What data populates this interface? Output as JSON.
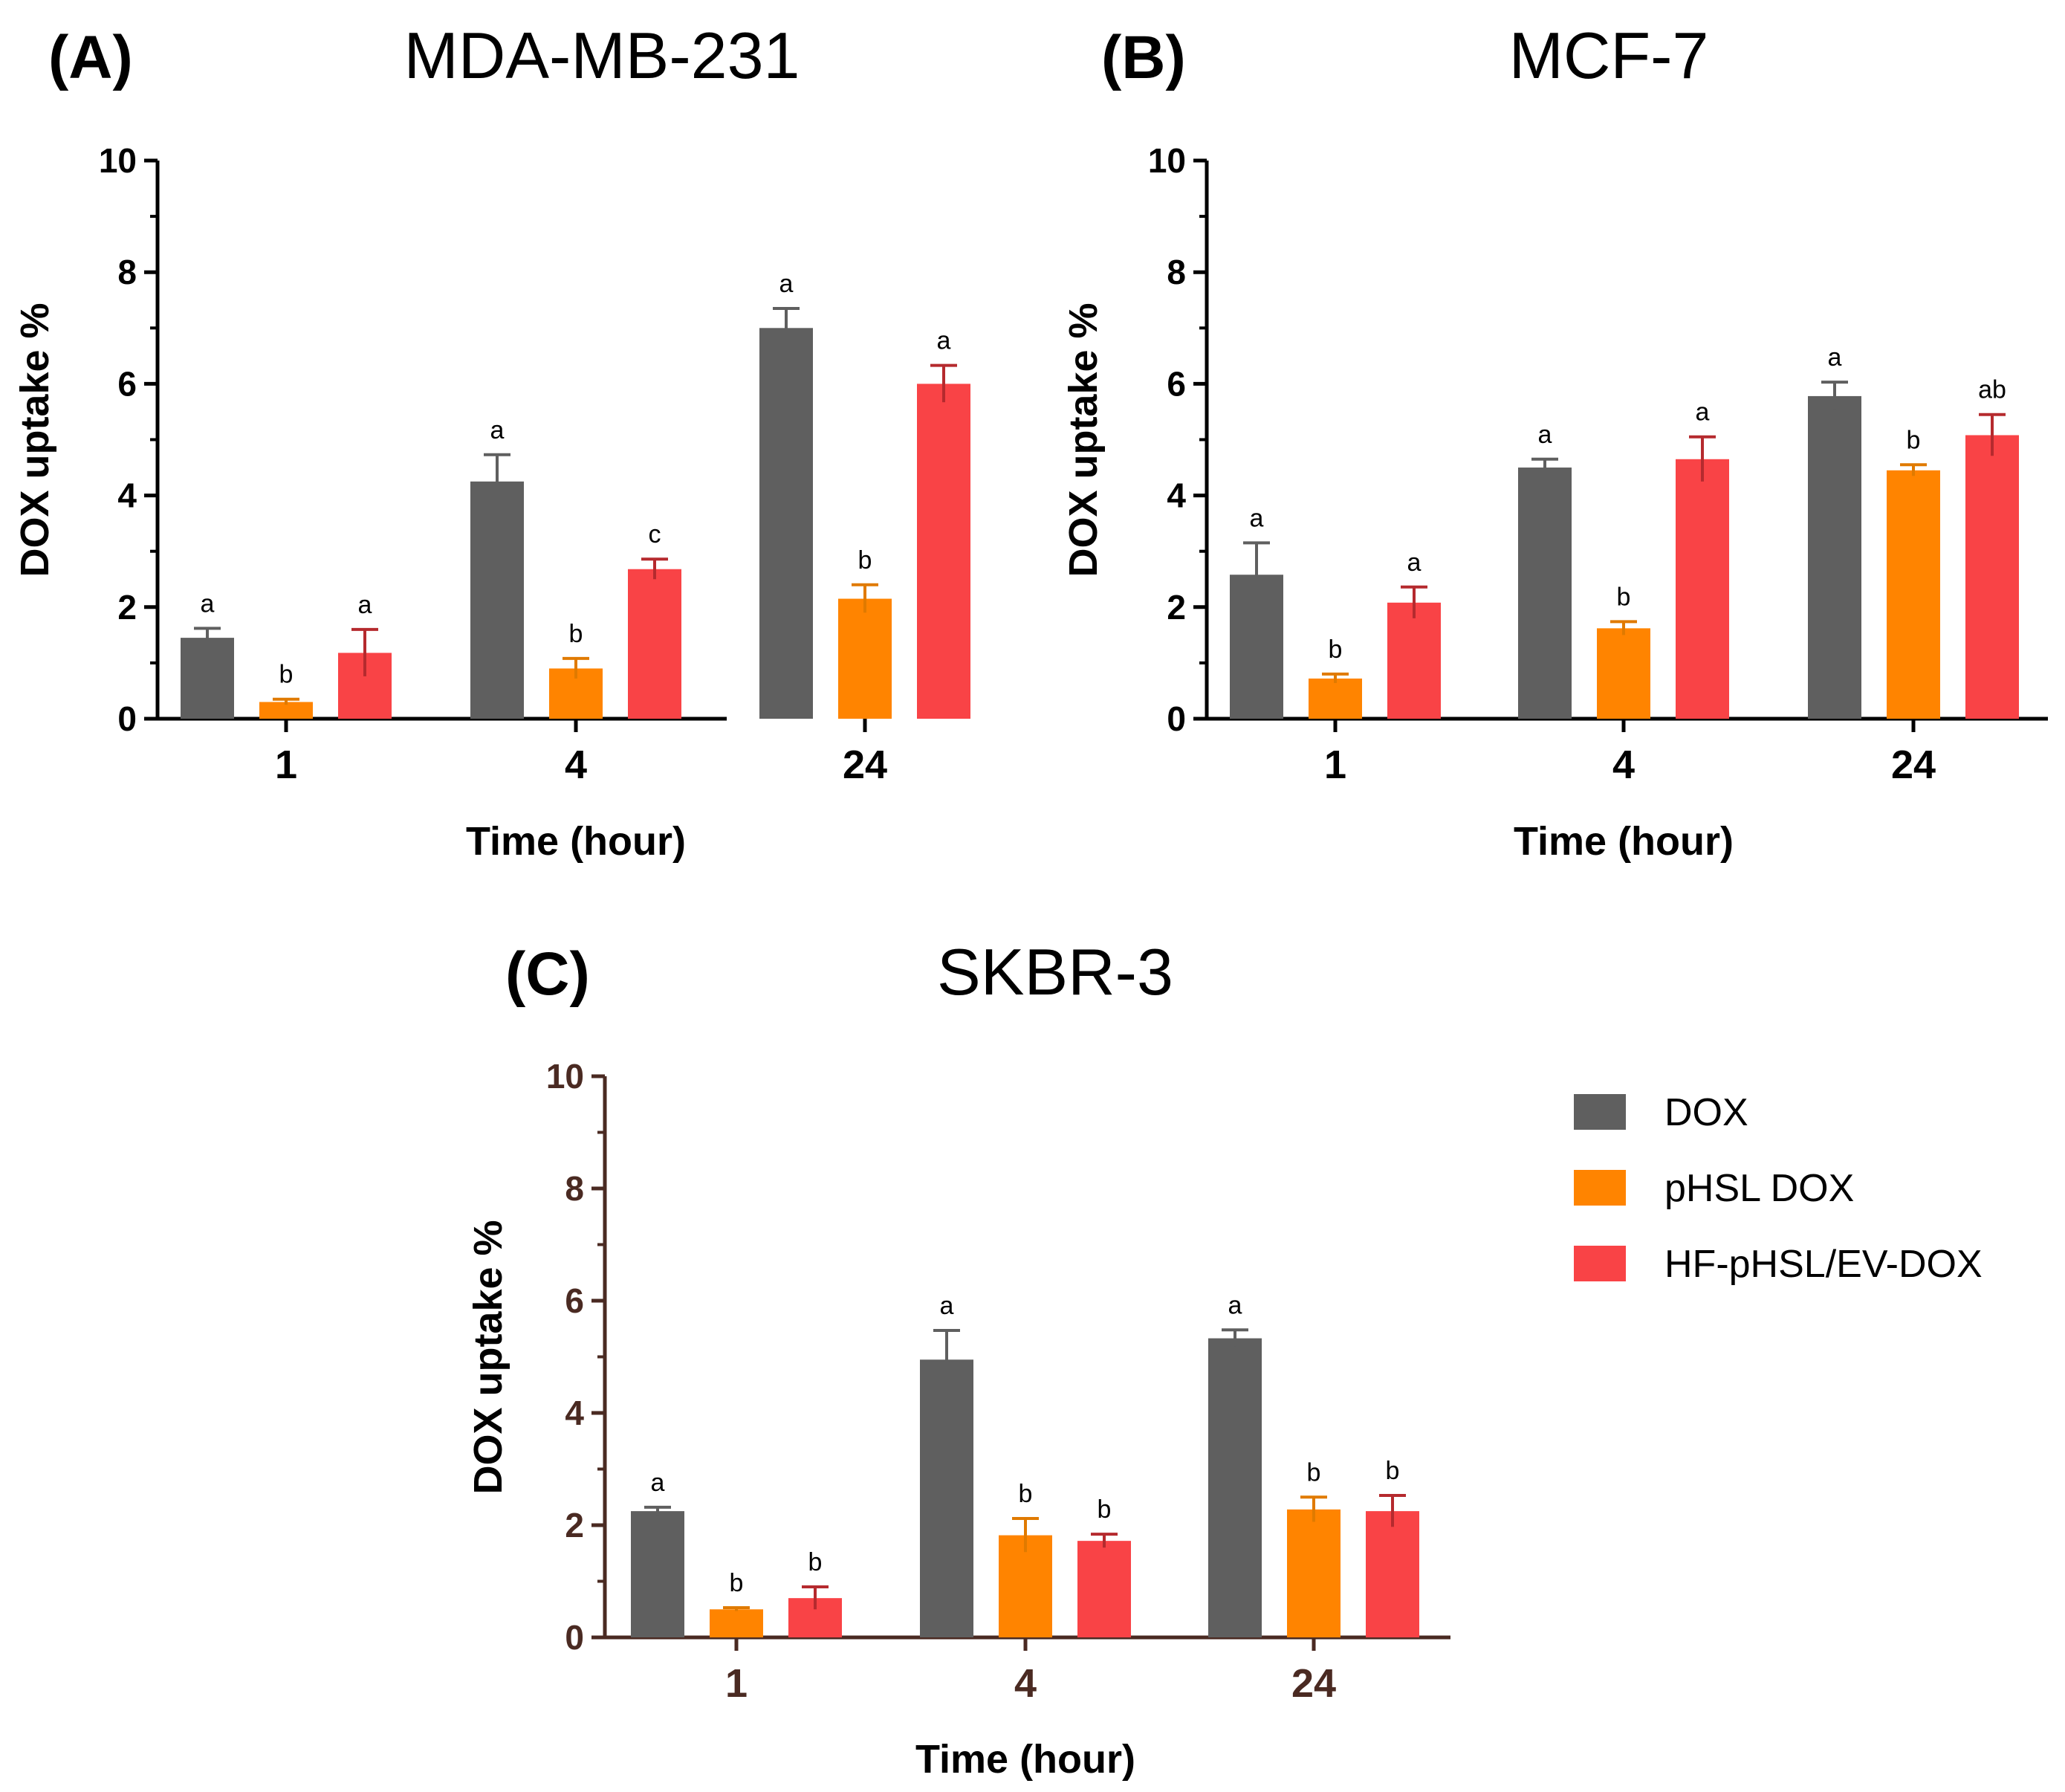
{
  "chart_data": [
    {
      "type": "bar",
      "panel": "(A)",
      "title": "MDA-MB-231",
      "xlabel": "Time (hour)",
      "ylabel": "DOX uptake %",
      "ylim": [
        0,
        10
      ],
      "yticks": [
        "0",
        "2",
        "4",
        "6",
        "8",
        "10"
      ],
      "categories": [
        "1",
        "4",
        "24"
      ],
      "series": [
        {
          "name": "DOX",
          "values": [
            1.45,
            4.25,
            7.0
          ],
          "errors": [
            0.17,
            0.48,
            0.35
          ],
          "labels": [
            "a",
            "a",
            "a"
          ]
        },
        {
          "name": "pHSL DOX",
          "values": [
            0.3,
            0.9,
            2.15
          ],
          "errors": [
            0.05,
            0.18,
            0.25
          ],
          "labels": [
            "b",
            "b",
            "b"
          ]
        },
        {
          "name": "HF-pHSL/EV-DOX",
          "values": [
            1.18,
            2.68,
            6.0
          ],
          "errors": [
            0.42,
            0.18,
            0.33
          ],
          "labels": [
            "a",
            "c",
            "a"
          ]
        }
      ]
    },
    {
      "type": "bar",
      "panel": "(B)",
      "title": "MCF-7",
      "xlabel": "Time (hour)",
      "ylabel": "DOX uptake %",
      "ylim": [
        0,
        10
      ],
      "yticks": [
        "0",
        "2",
        "4",
        "6",
        "8",
        "10"
      ],
      "categories": [
        "1",
        "4",
        "24"
      ],
      "series": [
        {
          "name": "DOX",
          "values": [
            2.58,
            4.5,
            5.78
          ],
          "errors": [
            0.57,
            0.15,
            0.25
          ],
          "labels": [
            "a",
            "a",
            "a"
          ]
        },
        {
          "name": "pHSL DOX",
          "values": [
            0.72,
            1.62,
            4.45
          ],
          "errors": [
            0.08,
            0.12,
            0.1
          ],
          "labels": [
            "b",
            "b",
            "b"
          ]
        },
        {
          "name": "HF-pHSL/EV-DOX",
          "values": [
            2.08,
            4.65,
            5.08
          ],
          "errors": [
            0.28,
            0.4,
            0.37
          ],
          "labels": [
            "a",
            "a",
            "ab"
          ]
        }
      ]
    },
    {
      "type": "bar",
      "panel": "(C)",
      "title": "SKBR-3",
      "xlabel": "Time (hour)",
      "ylabel": "DOX uptake %",
      "ylim": [
        0,
        10
      ],
      "yticks": [
        "0",
        "2",
        "4",
        "6",
        "8",
        "10"
      ],
      "categories": [
        "1",
        "4",
        "24"
      ],
      "series": [
        {
          "name": "DOX",
          "values": [
            2.25,
            4.95,
            5.33
          ],
          "errors": [
            0.07,
            0.52,
            0.15
          ],
          "labels": [
            "a",
            "a",
            "a"
          ]
        },
        {
          "name": "pHSL DOX",
          "values": [
            0.5,
            1.82,
            2.28
          ],
          "errors": [
            0.03,
            0.3,
            0.22
          ],
          "labels": [
            "b",
            "b",
            "b"
          ]
        },
        {
          "name": "HF-pHSL/EV-DOX",
          "values": [
            0.7,
            1.72,
            2.25
          ],
          "errors": [
            0.2,
            0.12,
            0.28
          ],
          "labels": [
            "b",
            "b",
            "b"
          ]
        }
      ]
    }
  ],
  "legend": {
    "entries": [
      {
        "name": "DOX",
        "color": "#5f5f5f"
      },
      {
        "name": "pHSL DOX",
        "color": "#ff8400"
      },
      {
        "name": "HF-pHSL/EV-DOX",
        "color": "#f94346"
      }
    ]
  },
  "colors": {
    "series": [
      "#5f5f5f",
      "#ff8400",
      "#f94346"
    ],
    "errorbars": [
      "#5f5f5f",
      "#e07a00",
      "#b52a2e"
    ],
    "axis_ab": "#000000",
    "axis_c": "#4a2a22"
  }
}
